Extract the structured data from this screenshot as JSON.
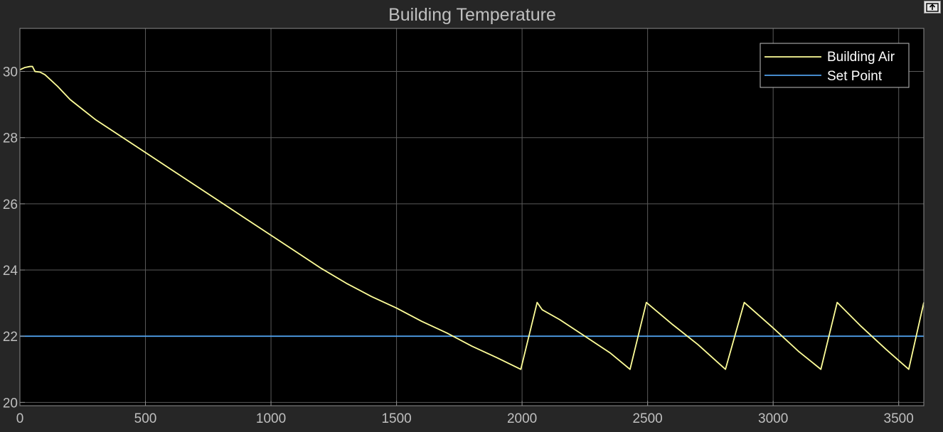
{
  "chart_data": {
    "type": "line",
    "title": "Building Temperature",
    "xlabel": "",
    "ylabel": "",
    "xlim": [
      0,
      3600
    ],
    "ylim": [
      19.9,
      31.3
    ],
    "x_ticks": [
      0,
      500,
      1000,
      1500,
      2000,
      2500,
      3000,
      3500
    ],
    "y_ticks": [
      20,
      22,
      24,
      26,
      28,
      30
    ],
    "grid": true,
    "legend_position": "top-right",
    "background": "#000000",
    "grid_color": "#5a5a5a",
    "series": [
      {
        "name": "Building Air",
        "color": "#ffff99",
        "x": [
          0,
          20,
          40,
          50,
          60,
          80,
          100,
          150,
          200,
          250,
          300,
          400,
          500,
          600,
          700,
          800,
          900,
          1000,
          1100,
          1200,
          1300,
          1400,
          1500,
          1600,
          1700,
          1800,
          1900,
          1995,
          2060,
          2080,
          2150,
          2250,
          2350,
          2430,
          2495,
          2600,
          2700,
          2810,
          2885,
          3000,
          3100,
          3190,
          3255,
          3350,
          3450,
          3540,
          3600
        ],
        "y": [
          30.05,
          30.12,
          30.15,
          30.15,
          30.0,
          29.98,
          29.9,
          29.55,
          29.15,
          28.85,
          28.55,
          28.05,
          27.55,
          27.05,
          26.55,
          26.05,
          25.55,
          25.05,
          24.55,
          24.05,
          23.6,
          23.2,
          22.85,
          22.45,
          22.1,
          21.7,
          21.35,
          21.0,
          23.02,
          22.8,
          22.5,
          22.0,
          21.5,
          21.0,
          23.02,
          22.35,
          21.75,
          21.0,
          23.02,
          22.25,
          21.55,
          21.0,
          23.02,
          22.3,
          21.6,
          21.0,
          23.02
        ]
      },
      {
        "name": "Set Point",
        "color": "#4f9ee8",
        "x": [
          0,
          3600
        ],
        "y": [
          22,
          22
        ]
      }
    ]
  }
}
